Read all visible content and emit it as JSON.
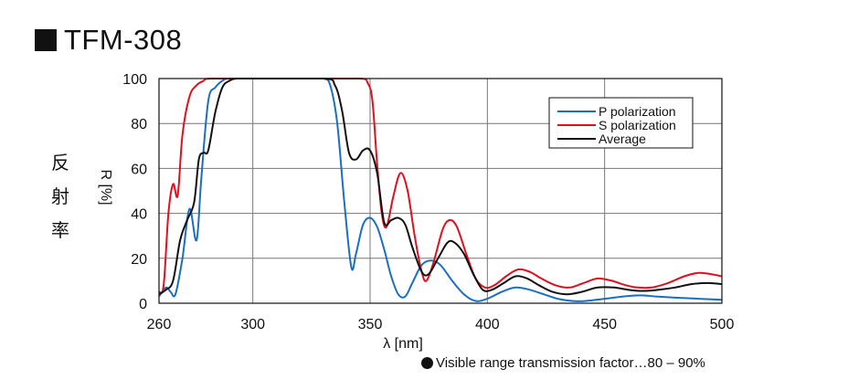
{
  "header": {
    "title": "TFM-308"
  },
  "side_label": [
    "反",
    "射",
    "率"
  ],
  "footnote": "Visible range transmission factor…80 – 90%",
  "chart_data": {
    "type": "line",
    "title": "TFM-308",
    "xlabel": "λ [nm]",
    "ylabel": "R [%]",
    "xlim": [
      260,
      500
    ],
    "ylim": [
      0,
      100
    ],
    "xticks": [
      260,
      300,
      350,
      400,
      450,
      500
    ],
    "yticks": [
      0,
      20,
      40,
      60,
      80,
      100
    ],
    "grid": true,
    "legend_position": "top-right",
    "series": [
      {
        "name": "P polarization",
        "color": "#1a6fc4",
        "points": [
          [
            260,
            3
          ],
          [
            263,
            7
          ],
          [
            265,
            5
          ],
          [
            267,
            4
          ],
          [
            270,
            20
          ],
          [
            273,
            42
          ],
          [
            276,
            28
          ],
          [
            278,
            55
          ],
          [
            281,
            90
          ],
          [
            284,
            96
          ],
          [
            287,
            99
          ],
          [
            290,
            100
          ],
          [
            300,
            100
          ],
          [
            320,
            100
          ],
          [
            330,
            100
          ],
          [
            333,
            97
          ],
          [
            336,
            80
          ],
          [
            339,
            45
          ],
          [
            342,
            16
          ],
          [
            344,
            22
          ],
          [
            347,
            35
          ],
          [
            350,
            38
          ],
          [
            353,
            34
          ],
          [
            356,
            24
          ],
          [
            359,
            12
          ],
          [
            362,
            4
          ],
          [
            365,
            3
          ],
          [
            368,
            9
          ],
          [
            372,
            17
          ],
          [
            376,
            19
          ],
          [
            380,
            17
          ],
          [
            385,
            10
          ],
          [
            390,
            4
          ],
          [
            395,
            1
          ],
          [
            400,
            2
          ],
          [
            406,
            5
          ],
          [
            412,
            7
          ],
          [
            418,
            6
          ],
          [
            424,
            4
          ],
          [
            430,
            2
          ],
          [
            436,
            1
          ],
          [
            442,
            1
          ],
          [
            450,
            2
          ],
          [
            458,
            3
          ],
          [
            465,
            3.5
          ],
          [
            472,
            3
          ],
          [
            480,
            2.5
          ],
          [
            490,
            2
          ],
          [
            500,
            1.5
          ]
        ]
      },
      {
        "name": "S polarization",
        "color": "#e01020",
        "points": [
          [
            260,
            5
          ],
          [
            262,
            8
          ],
          [
            264,
            40
          ],
          [
            266,
            53
          ],
          [
            268,
            48
          ],
          [
            270,
            75
          ],
          [
            273,
            92
          ],
          [
            276,
            97
          ],
          [
            279,
            99
          ],
          [
            282,
            100
          ],
          [
            300,
            100
          ],
          [
            330,
            100
          ],
          [
            346,
            100
          ],
          [
            349,
            98
          ],
          [
            351,
            90
          ],
          [
            353,
            62
          ],
          [
            355,
            40
          ],
          [
            357,
            34
          ],
          [
            360,
            48
          ],
          [
            363,
            58
          ],
          [
            366,
            50
          ],
          [
            369,
            30
          ],
          [
            372,
            14
          ],
          [
            374,
            10
          ],
          [
            377,
            18
          ],
          [
            381,
            33
          ],
          [
            384,
            37
          ],
          [
            387,
            34
          ],
          [
            391,
            22
          ],
          [
            395,
            11
          ],
          [
            399,
            7
          ],
          [
            403,
            8
          ],
          [
            408,
            12
          ],
          [
            413,
            15
          ],
          [
            418,
            14
          ],
          [
            423,
            11
          ],
          [
            429,
            8
          ],
          [
            435,
            7
          ],
          [
            441,
            9
          ],
          [
            447,
            11
          ],
          [
            453,
            10
          ],
          [
            459,
            8
          ],
          [
            464,
            7
          ],
          [
            470,
            7
          ],
          [
            477,
            9
          ],
          [
            484,
            12
          ],
          [
            490,
            13.5
          ],
          [
            495,
            13
          ],
          [
            500,
            12
          ]
        ]
      },
      {
        "name": "Average",
        "color": "#111111",
        "points": [
          [
            260,
            4
          ],
          [
            263,
            6
          ],
          [
            266,
            10
          ],
          [
            269,
            28
          ],
          [
            272,
            37
          ],
          [
            275,
            45
          ],
          [
            277,
            64
          ],
          [
            279,
            67
          ],
          [
            281,
            68
          ],
          [
            284,
            85
          ],
          [
            287,
            96
          ],
          [
            290,
            99
          ],
          [
            293,
            100
          ],
          [
            300,
            100
          ],
          [
            330,
            100
          ],
          [
            335,
            97
          ],
          [
            338,
            86
          ],
          [
            341,
            67
          ],
          [
            344,
            64
          ],
          [
            347,
            68
          ],
          [
            350,
            68
          ],
          [
            353,
            58
          ],
          [
            356,
            36
          ],
          [
            359,
            37
          ],
          [
            362,
            38
          ],
          [
            365,
            35
          ],
          [
            368,
            25
          ],
          [
            372,
            14
          ],
          [
            375,
            13
          ],
          [
            379,
            20
          ],
          [
            383,
            27
          ],
          [
            386,
            27
          ],
          [
            390,
            22
          ],
          [
            394,
            13
          ],
          [
            398,
            6
          ],
          [
            402,
            6
          ],
          [
            407,
            9
          ],
          [
            412,
            12
          ],
          [
            417,
            11
          ],
          [
            422,
            8
          ],
          [
            428,
            5
          ],
          [
            434,
            4
          ],
          [
            440,
            5
          ],
          [
            447,
            7
          ],
          [
            454,
            7
          ],
          [
            460,
            6
          ],
          [
            466,
            5.5
          ],
          [
            473,
            6
          ],
          [
            480,
            7
          ],
          [
            487,
            8.5
          ],
          [
            494,
            9
          ],
          [
            500,
            8.5
          ]
        ]
      }
    ]
  }
}
